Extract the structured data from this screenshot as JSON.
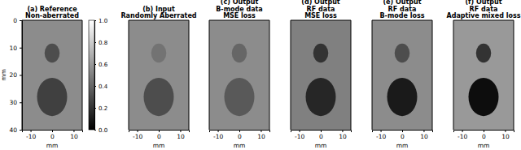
{
  "chart_data": [
    {
      "type": "image",
      "title": "(a) Reference",
      "subtitle": "Non-aberrated",
      "xlabel": "mm",
      "ylabel": "mm",
      "xlim": [
        -14,
        14
      ],
      "ylim": [
        0,
        40
      ],
      "xticks": [
        -10,
        0,
        10
      ],
      "yticks": [
        0,
        10,
        20,
        30,
        40
      ],
      "background": 0.55,
      "cysts": [
        {
          "x": 0,
          "y": 12,
          "r": 3.5,
          "value": 0.3
        },
        {
          "x": 0,
          "y": 28,
          "r": 7,
          "value": 0.25
        }
      ],
      "colorbar": {
        "range": [
          0,
          1
        ],
        "ticks": [
          {
            "value": 0,
            "label": "0.0"
          },
          {
            "value": 0.2,
            "label": "0.2"
          },
          {
            "value": 0.4,
            "label": "0.4"
          },
          {
            "value": 0.6,
            "label": "0.6"
          },
          {
            "value": 0.8,
            "label": "0.8"
          },
          {
            "value": 1,
            "label": "1.0"
          }
        ]
      }
    },
    {
      "type": "image",
      "title": "(b) Input",
      "subtitle": "Randomly Aberrated",
      "xlabel": "mm",
      "tick_labels": "x",
      "xlim": [
        -14,
        14
      ],
      "ylim": [
        0,
        40
      ],
      "xticks": [
        -10,
        0,
        10
      ],
      "background": 0.55,
      "cysts": [
        {
          "x": 0,
          "y": 12,
          "r": 3.5,
          "value": 0.45
        },
        {
          "x": 0,
          "y": 28,
          "r": 7,
          "value": 0.3
        }
      ]
    },
    {
      "type": "image",
      "title": "(c) Output",
      "subtitle": "B-mode data",
      "subtitle2": "MSE loss",
      "xlabel": "mm",
      "tick_labels": "x",
      "xlim": [
        -14,
        14
      ],
      "ylim": [
        0,
        40
      ],
      "xticks": [
        -10,
        0,
        10
      ],
      "background": 0.55,
      "cysts": [
        {
          "x": 0,
          "y": 12,
          "r": 3.5,
          "value": 0.4
        },
        {
          "x": 0,
          "y": 28,
          "r": 7,
          "value": 0.35
        }
      ]
    },
    {
      "type": "image",
      "title": "(d) Output",
      "subtitle": "RF data",
      "subtitle2": "MSE loss",
      "xlabel": "mm",
      "tick_labels": "x",
      "xlim": [
        -14,
        14
      ],
      "ylim": [
        0,
        40
      ],
      "xticks": [
        -10,
        0,
        10
      ],
      "background": 0.5,
      "cysts": [
        {
          "x": 0,
          "y": 12,
          "r": 3.5,
          "value": 0.2
        },
        {
          "x": 0,
          "y": 28,
          "r": 7,
          "value": 0.15
        }
      ]
    },
    {
      "type": "image",
      "title": "(e) Output",
      "subtitle": "RF data",
      "subtitle2": "B-mode loss",
      "xlabel": "mm",
      "tick_labels": "x",
      "xlim": [
        -14,
        14
      ],
      "ylim": [
        0,
        40
      ],
      "xticks": [
        -10,
        0,
        10
      ],
      "background": 0.55,
      "cysts": [
        {
          "x": 0,
          "y": 12,
          "r": 3.5,
          "value": 0.3
        },
        {
          "x": 0,
          "y": 28,
          "r": 7,
          "value": 0.1
        }
      ]
    },
    {
      "type": "image",
      "title": "(f) Output",
      "subtitle": "RF data",
      "subtitle2": "Adaptive mixed loss",
      "xlabel": "mm",
      "tick_labels": "x",
      "xlim": [
        -14,
        14
      ],
      "ylim": [
        0,
        40
      ],
      "xticks": [
        -10,
        0,
        10
      ],
      "background": 0.6,
      "cysts": [
        {
          "x": 0,
          "y": 12,
          "r": 3.5,
          "value": 0.2
        },
        {
          "x": 0,
          "y": 28,
          "r": 7,
          "value": 0.05
        }
      ]
    }
  ]
}
